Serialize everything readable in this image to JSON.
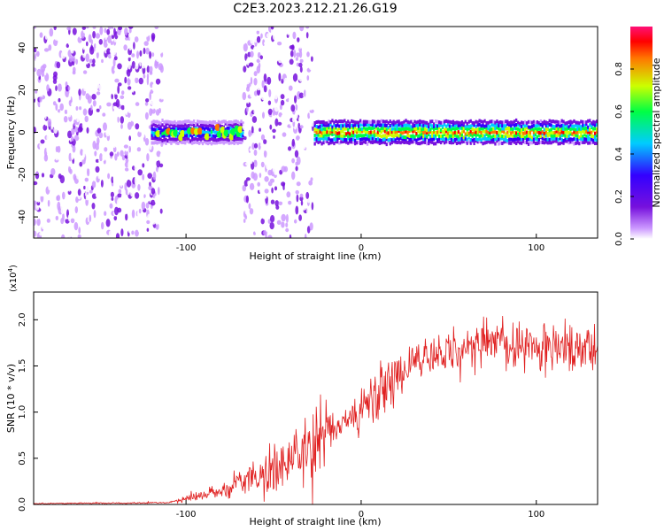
{
  "title": "C2E3.2023.212.21.26.G19",
  "chart_data": [
    {
      "type": "heatmap",
      "xlabel": "Height of straight line (km)",
      "ylabel": "Frequency (Hz)",
      "xlim": [
        -187,
        135
      ],
      "ylim": [
        -50,
        50
      ],
      "x_ticks": [
        -100,
        0,
        100
      ],
      "y_ticks": [
        40,
        20,
        0,
        -20,
        -40
      ],
      "colorbar": {
        "label": "Normalized spectral amplitude",
        "range": [
          0.0,
          1.0
        ],
        "ticks": [
          "0.0",
          "0.2",
          "0.4",
          "0.6",
          "0.8"
        ],
        "colors": [
          "#ffffff",
          "#cc99ff",
          "#7711dd",
          "#3300ff",
          "#00ccff",
          "#00ff44",
          "#ccff00",
          "#ff7700",
          "#ff0000",
          "#ff1177"
        ]
      },
      "regions": [
        {
          "x": [
            -187,
            -115
          ],
          "kind": "noise",
          "freq": [
            -50,
            50
          ]
        },
        {
          "x": [
            -120,
            -68
          ],
          "kind": "signal",
          "freq_center": 0,
          "amplitude": 0.55
        },
        {
          "x": [
            -67,
            -29
          ],
          "kind": "noise",
          "freq": [
            -50,
            50
          ]
        },
        {
          "x": [
            -27,
            135
          ],
          "kind": "signal",
          "freq_center": 0,
          "amplitude": 0.9
        }
      ],
      "grid": false
    },
    {
      "type": "line",
      "xlabel": "Height of straight line (km)",
      "ylabel": "SNR (10 * v/v)",
      "multiplier_label": "(x10",
      "multiplier_exp": "4",
      "multiplier_close": ")",
      "xlim": [
        -187,
        135
      ],
      "ylim": [
        0,
        2.3
      ],
      "x_ticks": [
        -100,
        0,
        100
      ],
      "y_ticks": [
        "0.0",
        "0.5",
        "1.0",
        "1.5",
        "2.0"
      ],
      "color": "#e02020",
      "trend": [
        {
          "x": -187,
          "y": 0.01
        },
        {
          "x": -110,
          "y": 0.02
        },
        {
          "x": -100,
          "y": 0.06
        },
        {
          "x": -80,
          "y": 0.14
        },
        {
          "x": -60,
          "y": 0.3
        },
        {
          "x": -40,
          "y": 0.48
        },
        {
          "x": -20,
          "y": 0.75
        },
        {
          "x": 0,
          "y": 1.05
        },
        {
          "x": 20,
          "y": 1.4
        },
        {
          "x": 40,
          "y": 1.62
        },
        {
          "x": 60,
          "y": 1.72
        },
        {
          "x": 80,
          "y": 1.75
        },
        {
          "x": 100,
          "y": 1.72
        },
        {
          "x": 120,
          "y": 1.68
        },
        {
          "x": 135,
          "y": 1.65
        }
      ],
      "grid": false
    }
  ]
}
